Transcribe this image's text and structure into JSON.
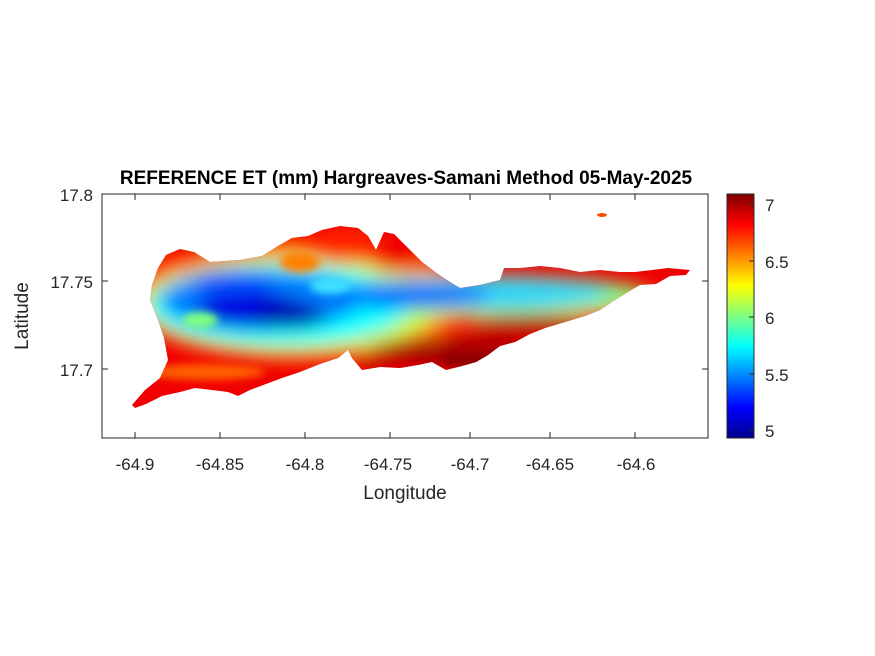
{
  "title": "REFERENCE ET (mm) Hargreaves-Samani Method  05-May-2025",
  "xlabel": "Longitude",
  "ylabel": "Latitude",
  "xticks": [
    "-64.9",
    "-64.85",
    "-64.8",
    "-64.75",
    "-64.7",
    "-64.65",
    "-64.6"
  ],
  "yticks": [
    "17.8",
    "17.75",
    "17.7"
  ],
  "colorbar": {
    "ticks": [
      "7",
      "6.5",
      "6",
      "5.5",
      "5"
    ],
    "colormap": "jet",
    "colors": [
      "#00008f",
      "#0000ff",
      "#0080ff",
      "#00ffff",
      "#80ff80",
      "#ffff00",
      "#ff8000",
      "#ff0000",
      "#800000"
    ]
  },
  "chart_data": {
    "type": "heatmap",
    "title": "REFERENCE ET (mm) Hargreaves-Samani Method  05-May-2025",
    "xlabel": "Longitude",
    "ylabel": "Latitude",
    "xlim": [
      -64.92,
      -64.56
    ],
    "ylim": [
      17.66,
      17.8
    ],
    "clim": [
      4.9,
      7.1
    ],
    "pattern": "island-shaped field: low values (about 5) in the central west interior, rising to about 7 along the south coast and east end",
    "zones": [
      {
        "region": "south coast",
        "value": 7.0
      },
      {
        "region": "western and northern edges",
        "value": 6.7
      },
      {
        "region": "central-west interior",
        "value": 5.0
      },
      {
        "region": "central ridge east",
        "value": 5.4
      },
      {
        "region": "transition band",
        "value": 6.0
      }
    ]
  }
}
